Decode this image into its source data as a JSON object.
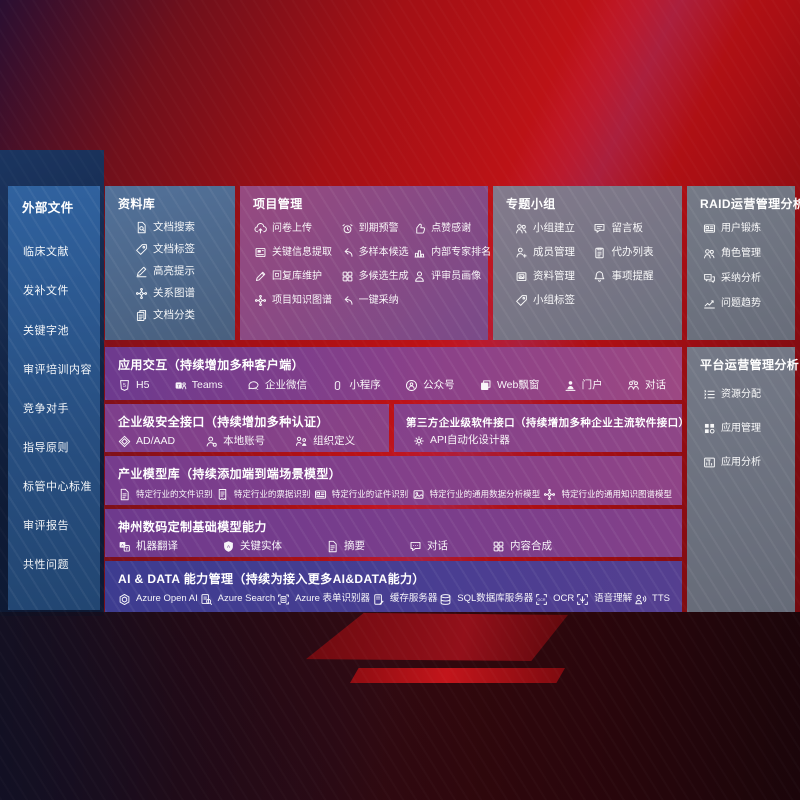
{
  "colors": {
    "background_red": "#b01015",
    "sidebar_blue": "#2b5a94",
    "repository_blue": "#4d6c94",
    "magenta_panel": "#8f4781",
    "purple_row": "#7b3c8c",
    "indigo_row": "#3f3b8f",
    "gray_panel": "#6e7380",
    "text": "#ffffff"
  },
  "sidebar": {
    "title": "外部文件",
    "items": [
      {
        "label": "临床文献"
      },
      {
        "label": "发补文件"
      },
      {
        "label": "关键字池"
      },
      {
        "label": "审评培训内容"
      },
      {
        "label": "竞争对手"
      },
      {
        "label": "指导原则"
      },
      {
        "label": "标管中心标准"
      },
      {
        "label": "审评报告"
      },
      {
        "label": "共性问题"
      }
    ]
  },
  "panels": {
    "repository": {
      "title": "资料库",
      "items": [
        {
          "icon": "doc-search-icon",
          "label": "文档搜索"
        },
        {
          "icon": "tag-icon",
          "label": "文档标签"
        },
        {
          "icon": "highlight-pen-icon",
          "label": "高亮提示"
        },
        {
          "icon": "graph-network-icon",
          "label": "关系图谱"
        },
        {
          "icon": "doc-copy-icon",
          "label": "文档分类"
        }
      ]
    },
    "project": {
      "title": "项目管理",
      "items": [
        {
          "icon": "cloud-upload-icon",
          "label": "问卷上传"
        },
        {
          "icon": "alarm-icon",
          "label": "到期预警"
        },
        {
          "icon": "thumbs-up-icon",
          "label": "点赞感谢"
        },
        {
          "icon": "key-info-icon",
          "label": "关键信息提取"
        },
        {
          "icon": "reply-arrow-icon",
          "label": "多样本候选"
        },
        {
          "icon": "ranking-podium-icon",
          "label": "内部专家排名"
        },
        {
          "icon": "edit-pen-icon",
          "label": "回复库维护"
        },
        {
          "icon": "puzzle-icon",
          "label": "多候选生成"
        },
        {
          "icon": "person-icon",
          "label": "评审员画像"
        },
        {
          "icon": "knowledge-graph-icon",
          "label": "项目知识图谱"
        },
        {
          "icon": "adopt-arrow-icon",
          "label": "一键采纳"
        }
      ]
    },
    "groups": {
      "title": "专题小组",
      "items": [
        {
          "icon": "people-icon",
          "label": "小组建立"
        },
        {
          "icon": "bbs-board-icon",
          "label": "留言板"
        },
        {
          "icon": "person-add-icon",
          "label": "成员管理"
        },
        {
          "icon": "clipboard-icon",
          "label": "代办列表"
        },
        {
          "icon": "material-box-icon",
          "label": "资料管理"
        },
        {
          "icon": "bell-icon",
          "label": "事项提醒"
        },
        {
          "icon": "tag-icon",
          "label": "小组标签"
        }
      ]
    },
    "raid": {
      "title": "RAID运营管理分析",
      "items": [
        {
          "icon": "id-card-icon",
          "label": "用户锻炼"
        },
        {
          "icon": "people-icon",
          "label": "角色管理"
        },
        {
          "icon": "chat-qa-icon",
          "label": "采纳分析"
        },
        {
          "icon": "trend-chart-icon",
          "label": "问题趋势"
        }
      ]
    },
    "interaction": {
      "title": "应用交互（持续增加多种客户端）",
      "items": [
        {
          "icon": "html5-icon",
          "label": "H5"
        },
        {
          "icon": "teams-icon",
          "label": "Teams"
        },
        {
          "icon": "wechat-work-icon",
          "label": "企业微信"
        },
        {
          "icon": "miniprogram-icon",
          "label": "小程序"
        },
        {
          "icon": "official-account-icon",
          "label": "公众号"
        },
        {
          "icon": "web-window-icon",
          "label": "Web飘窗"
        },
        {
          "icon": "portal-person-icon",
          "label": "门户"
        },
        {
          "icon": "dialog-people-icon",
          "label": "对话"
        }
      ]
    },
    "security": {
      "title": "企业级安全接口（持续增加多种认证）",
      "items": [
        {
          "icon": "ad-shield-icon",
          "label": "AD/AAD"
        },
        {
          "icon": "local-account-icon",
          "label": "本地账号"
        },
        {
          "icon": "org-people-icon",
          "label": "组织定义"
        }
      ]
    },
    "thirdparty": {
      "title": "第三方企业级软件接口（持续增加多种企业主流软件接口）",
      "items": [
        {
          "icon": "api-gear-icon",
          "label": "API自动化设计器"
        }
      ]
    },
    "industry": {
      "title": "产业模型库（持续添加端到端场景模型）",
      "items": [
        {
          "icon": "doc-file-icon",
          "label": "特定行业的文件识别"
        },
        {
          "icon": "receipt-icon",
          "label": "特定行业的票据识别"
        },
        {
          "icon": "id-card-icon",
          "label": "特定行业的证件识别"
        },
        {
          "icon": "image-chart-icon",
          "label": "特定行业的通用数据分析模型"
        },
        {
          "icon": "knowledge-graph-icon",
          "label": "特定行业的通用知识图谱模型"
        }
      ]
    },
    "foundation": {
      "title": "神州数码定制基础模型能力",
      "items": [
        {
          "icon": "translate-icon",
          "label": "机器翻译"
        },
        {
          "icon": "entity-shield-icon",
          "label": "关键实体"
        },
        {
          "icon": "summary-doc-icon",
          "label": "摘要"
        },
        {
          "icon": "chat-dots-icon",
          "label": "对话"
        },
        {
          "icon": "puzzle-icon",
          "label": "内容合成"
        }
      ]
    },
    "aidata": {
      "title": "AI & DATA 能力管理（持续为接入更多AI&DATA能力）",
      "items": [
        {
          "icon": "openai-icon",
          "label": "Azure Open AI"
        },
        {
          "icon": "azure-search-icon",
          "label": "Azure Search"
        },
        {
          "icon": "form-recognizer-icon",
          "label": "Azure 表单识别器"
        },
        {
          "icon": "cache-server-icon",
          "label": "缓存服务器"
        },
        {
          "icon": "sql-db-icon",
          "label": "SQL数据库服务器"
        },
        {
          "icon": "ocr-icon",
          "label": "OCR"
        },
        {
          "icon": "speech-icon",
          "label": "语音理解"
        },
        {
          "icon": "tts-icon",
          "label": "TTS"
        }
      ]
    },
    "platform": {
      "title": "平台运营管理分析",
      "items": [
        {
          "icon": "resource-list-icon",
          "label": "资源分配"
        },
        {
          "icon": "app-grid-icon",
          "label": "应用管理"
        },
        {
          "icon": "app-chart-icon",
          "label": "应用分析"
        }
      ]
    }
  }
}
